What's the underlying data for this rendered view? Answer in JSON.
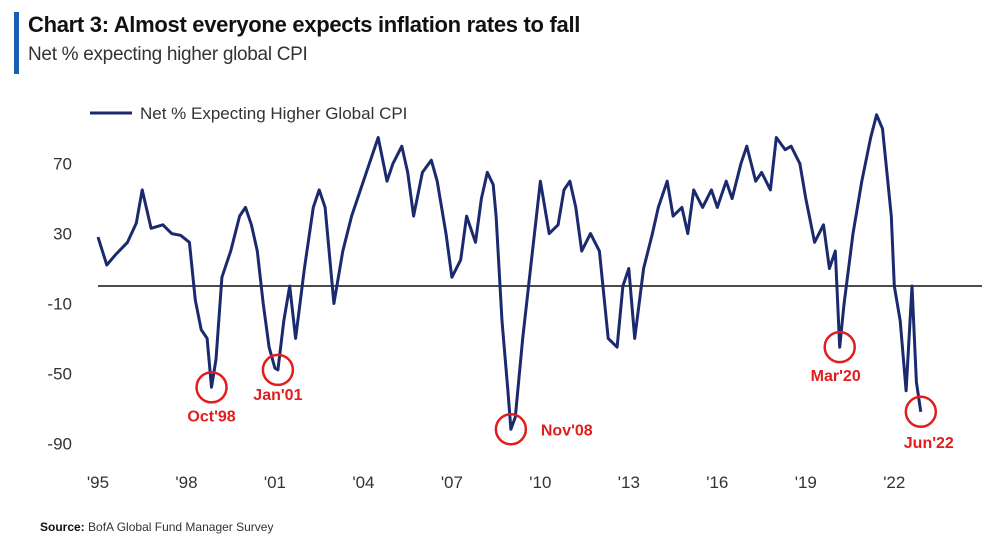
{
  "header": {
    "title": "Chart 3: Almost everyone expects inflation rates to fall",
    "subtitle": "Net % expecting higher global CPI"
  },
  "source": {
    "label": "Source:",
    "text": "BofA Global Fund Manager Survey"
  },
  "colors": {
    "line": "#1b2a6e",
    "annotation": "#e11d1d",
    "accent": "#1a5fb4"
  },
  "chart_data": {
    "type": "line",
    "xlabel": "",
    "ylabel": "",
    "xlim": [
      1995,
      2024.5
    ],
    "ylim": [
      -95,
      95
    ],
    "y_ticks": [
      70,
      30,
      -10,
      -50,
      -90
    ],
    "y_tick_labels": [
      "70",
      "30",
      "-10",
      "-50",
      "-90"
    ],
    "x_ticks": [
      1995,
      1998,
      2001,
      2004,
      2007,
      2010,
      2013,
      2016,
      2019,
      2022
    ],
    "x_tick_labels": [
      "'95",
      "'98",
      "'01",
      "'04",
      "'07",
      "'10",
      "'13",
      "'16",
      "'19",
      "'22"
    ],
    "zero_line": 0,
    "legend": {
      "placement": "top-left",
      "entries": [
        "Net % Expecting Higher Global CPI"
      ]
    },
    "series": [
      {
        "name": "Net % Expecting Higher Global CPI",
        "points": [
          [
            1995.0,
            28
          ],
          [
            1995.3,
            12
          ],
          [
            1995.6,
            18
          ],
          [
            1996.0,
            25
          ],
          [
            1996.3,
            36
          ],
          [
            1996.5,
            55
          ],
          [
            1996.8,
            33
          ],
          [
            1997.2,
            35
          ],
          [
            1997.5,
            30
          ],
          [
            1997.8,
            29
          ],
          [
            1998.1,
            25
          ],
          [
            1998.3,
            -8
          ],
          [
            1998.5,
            -25
          ],
          [
            1998.7,
            -30
          ],
          [
            1998.85,
            -58
          ],
          [
            1999.0,
            -42
          ],
          [
            1999.2,
            5
          ],
          [
            1999.5,
            20
          ],
          [
            1999.8,
            40
          ],
          [
            2000.0,
            45
          ],
          [
            2000.2,
            35
          ],
          [
            2000.4,
            20
          ],
          [
            2000.6,
            -10
          ],
          [
            2000.8,
            -35
          ],
          [
            2001.0,
            -47
          ],
          [
            2001.1,
            -48
          ],
          [
            2001.3,
            -20
          ],
          [
            2001.5,
            0
          ],
          [
            2001.7,
            -30
          ],
          [
            2002.0,
            10
          ],
          [
            2002.3,
            45
          ],
          [
            2002.5,
            55
          ],
          [
            2002.7,
            45
          ],
          [
            2003.0,
            -10
          ],
          [
            2003.3,
            20
          ],
          [
            2003.6,
            40
          ],
          [
            2004.0,
            60
          ],
          [
            2004.3,
            75
          ],
          [
            2004.5,
            85
          ],
          [
            2004.8,
            60
          ],
          [
            2005.0,
            70
          ],
          [
            2005.3,
            80
          ],
          [
            2005.5,
            65
          ],
          [
            2005.7,
            40
          ],
          [
            2006.0,
            65
          ],
          [
            2006.3,
            72
          ],
          [
            2006.5,
            60
          ],
          [
            2006.8,
            30
          ],
          [
            2007.0,
            5
          ],
          [
            2007.3,
            15
          ],
          [
            2007.5,
            40
          ],
          [
            2007.8,
            25
          ],
          [
            2008.0,
            50
          ],
          [
            2008.2,
            65
          ],
          [
            2008.4,
            58
          ],
          [
            2008.5,
            40
          ],
          [
            2008.7,
            -20
          ],
          [
            2008.9,
            -60
          ],
          [
            2009.0,
            -82
          ],
          [
            2009.15,
            -75
          ],
          [
            2009.4,
            -30
          ],
          [
            2009.7,
            15
          ],
          [
            2010.0,
            60
          ],
          [
            2010.3,
            30
          ],
          [
            2010.6,
            35
          ],
          [
            2010.8,
            55
          ],
          [
            2011.0,
            60
          ],
          [
            2011.2,
            45
          ],
          [
            2011.4,
            20
          ],
          [
            2011.7,
            30
          ],
          [
            2012.0,
            20
          ],
          [
            2012.3,
            -30
          ],
          [
            2012.6,
            -35
          ],
          [
            2012.8,
            0
          ],
          [
            2013.0,
            10
          ],
          [
            2013.2,
            -30
          ],
          [
            2013.5,
            10
          ],
          [
            2013.8,
            30
          ],
          [
            2014.0,
            45
          ],
          [
            2014.3,
            60
          ],
          [
            2014.5,
            40
          ],
          [
            2014.8,
            45
          ],
          [
            2015.0,
            30
          ],
          [
            2015.2,
            55
          ],
          [
            2015.5,
            45
          ],
          [
            2015.8,
            55
          ],
          [
            2016.0,
            45
          ],
          [
            2016.3,
            60
          ],
          [
            2016.5,
            50
          ],
          [
            2016.8,
            70
          ],
          [
            2017.0,
            80
          ],
          [
            2017.3,
            60
          ],
          [
            2017.5,
            65
          ],
          [
            2017.8,
            55
          ],
          [
            2018.0,
            85
          ],
          [
            2018.3,
            78
          ],
          [
            2018.5,
            80
          ],
          [
            2018.8,
            70
          ],
          [
            2019.0,
            50
          ],
          [
            2019.3,
            25
          ],
          [
            2019.6,
            35
          ],
          [
            2019.8,
            10
          ],
          [
            2020.0,
            20
          ],
          [
            2020.15,
            -35
          ],
          [
            2020.3,
            -10
          ],
          [
            2020.6,
            30
          ],
          [
            2020.9,
            60
          ],
          [
            2021.2,
            85
          ],
          [
            2021.4,
            98
          ],
          [
            2021.6,
            90
          ],
          [
            2021.9,
            40
          ],
          [
            2022.0,
            0
          ],
          [
            2022.2,
            -20
          ],
          [
            2022.4,
            -60
          ],
          [
            2022.6,
            0
          ],
          [
            2022.75,
            -55
          ],
          [
            2022.9,
            -72
          ]
        ]
      }
    ],
    "annotations": [
      {
        "label": "Oct'98",
        "x": 1998.85,
        "y": -58
      },
      {
        "label": "Jan'01",
        "x": 2001.1,
        "y": -48
      },
      {
        "label": "Nov'08",
        "x": 2009.0,
        "y": -82
      },
      {
        "label": "Mar'20",
        "x": 2020.15,
        "y": -35
      },
      {
        "label": "Jun'22",
        "x": 2022.9,
        "y": -72
      }
    ]
  }
}
